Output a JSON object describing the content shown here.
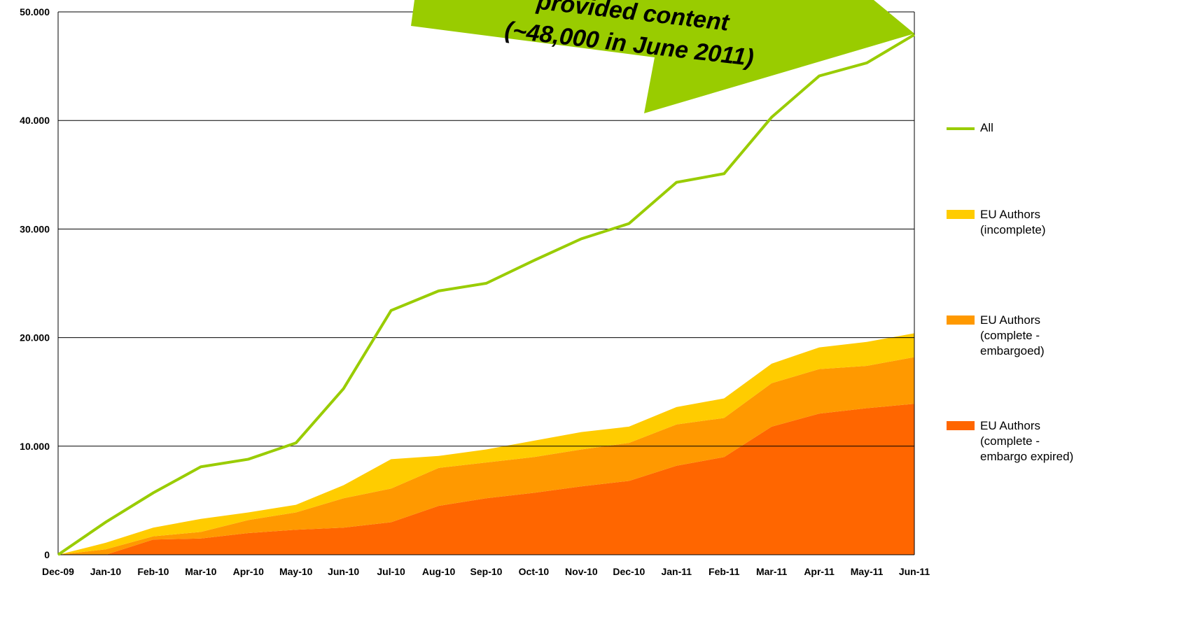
{
  "chart_data": {
    "type": "stacked-area-line",
    "annotation": [
      "provided content",
      "(~48,000 in June 2011)"
    ],
    "categories": [
      "Dec-09",
      "Jan-10",
      "Feb-10",
      "Mar-10",
      "Apr-10",
      "May-10",
      "Jun-10",
      "Jul-10",
      "Aug-10",
      "Sep-10",
      "Oct-10",
      "Nov-10",
      "Dec-10",
      "Jan-11",
      "Feb-11",
      "Mar-11",
      "Apr-11",
      "May-11",
      "Jun-11"
    ],
    "series": [
      {
        "name": "EU Authors (complete - embargo expired)",
        "color": "#ff6600",
        "kind": "area",
        "values": [
          0,
          0,
          1400,
          1500,
          2000,
          2300,
          2500,
          3000,
          4500,
          5200,
          5700,
          6300,
          6800,
          8200,
          9000,
          11800,
          13000,
          13500,
          13900
        ]
      },
      {
        "name": "EU Authors (complete - embargoed)",
        "color": "#ff9900",
        "kind": "area",
        "values": [
          0,
          500,
          300,
          600,
          1200,
          1600,
          2700,
          3100,
          3500,
          3300,
          3300,
          3400,
          3500,
          3800,
          3600,
          4000,
          4100,
          3900,
          4300
        ]
      },
      {
        "name": "EU Authors (incomplete)",
        "color": "#ffcc00",
        "kind": "area",
        "values": [
          0,
          600,
          800,
          1200,
          700,
          700,
          1200,
          2700,
          1100,
          1200,
          1500,
          1600,
          1500,
          1600,
          1800,
          1800,
          2000,
          2200,
          2200
        ]
      },
      {
        "name": "All",
        "color": "#99cc00",
        "kind": "line",
        "values": [
          0,
          3000,
          5700,
          8100,
          8800,
          10300,
          15300,
          22500,
          24300,
          25000,
          27100,
          29100,
          30500,
          34300,
          35100,
          40300,
          44100,
          45300,
          47900
        ]
      }
    ],
    "ylim": [
      0,
      50000
    ],
    "yticks": [
      0,
      {
        "value": 10000,
        "label": "10.000"
      },
      {
        "value": 20000,
        "label": "20.000"
      },
      {
        "value": 30000,
        "label": "30.000"
      },
      {
        "value": 40000,
        "label": "40.000"
      },
      {
        "value": 50000,
        "label": "50.000"
      }
    ],
    "grid": true,
    "annotation_color": "#99cc00"
  }
}
